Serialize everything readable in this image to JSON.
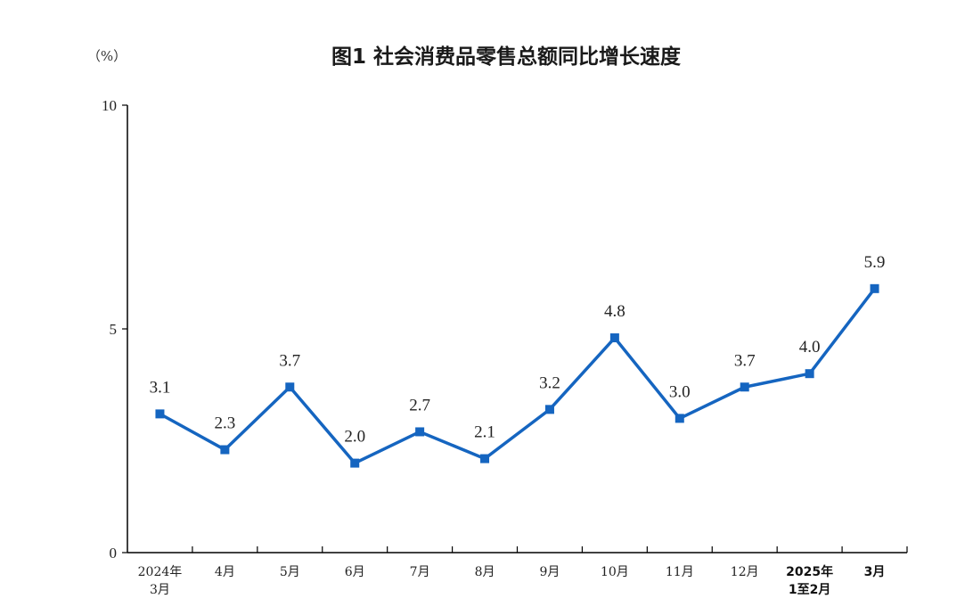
{
  "chart_data": {
    "type": "line",
    "title": "图1  社会消费品零售总额同比增长速度",
    "unit_label": "（%）",
    "categories": [
      {
        "lines": [
          "2024年",
          "3月"
        ],
        "bold": false
      },
      {
        "lines": [
          "4月"
        ],
        "bold": false
      },
      {
        "lines": [
          "5月"
        ],
        "bold": false
      },
      {
        "lines": [
          "6月"
        ],
        "bold": false
      },
      {
        "lines": [
          "7月"
        ],
        "bold": false
      },
      {
        "lines": [
          "8月"
        ],
        "bold": false
      },
      {
        "lines": [
          "9月"
        ],
        "bold": false
      },
      {
        "lines": [
          "10月"
        ],
        "bold": false
      },
      {
        "lines": [
          "11月"
        ],
        "bold": false
      },
      {
        "lines": [
          "12月"
        ],
        "bold": false
      },
      {
        "lines": [
          "2025年",
          "1至2月"
        ],
        "bold": true
      },
      {
        "lines": [
          "3月"
        ],
        "bold": true
      }
    ],
    "series": [
      {
        "values": [
          3.1,
          2.3,
          3.7,
          2.0,
          2.7,
          2.1,
          3.2,
          4.8,
          3.0,
          3.7,
          4.0,
          5.9
        ],
        "labels": [
          "3.1",
          "2.3",
          "3.7",
          "2.0",
          "2.7",
          "2.1",
          "3.2",
          "4.8",
          "3.0",
          "3.7",
          "4.0",
          "5.9"
        ],
        "color": "#1565c0"
      }
    ],
    "ylim": [
      0,
      10
    ],
    "yticks": [
      {
        "value": 0,
        "label": "0"
      },
      {
        "value": 5,
        "label": "5"
      },
      {
        "value": 10,
        "label": "10"
      }
    ],
    "grid": false,
    "legend": "none"
  }
}
